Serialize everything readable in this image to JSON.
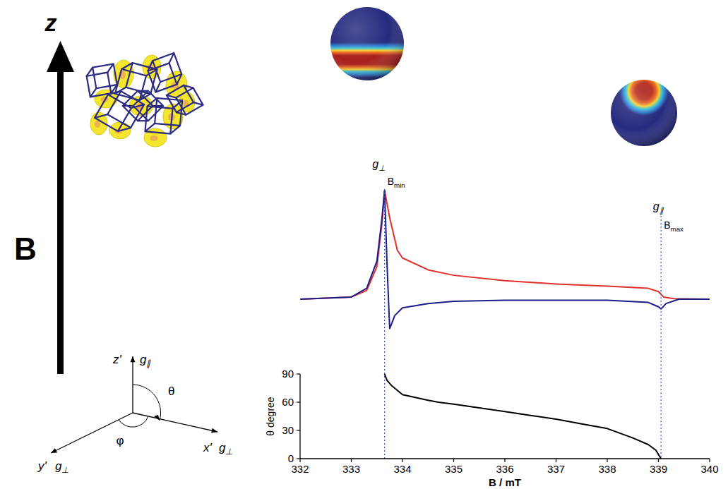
{
  "chart_data": [
    {
      "type": "line",
      "xlim": [
        332,
        340
      ],
      "ylim": [
        -0.4,
        1.1
      ],
      "tick_labels": false,
      "series": [
        {
          "color": "#e0302a",
          "x": [
            332,
            333,
            333.3,
            333.5,
            333.6,
            333.65,
            333.75,
            333.9,
            334,
            334.5,
            335,
            336,
            337,
            338,
            338.8,
            339,
            339.1,
            339.3,
            340
          ],
          "values": [
            0,
            0.02,
            0.08,
            0.3,
            0.7,
            1.0,
            0.75,
            0.45,
            0.38,
            0.27,
            0.22,
            0.17,
            0.14,
            0.12,
            0.1,
            0.07,
            0.02,
            0.005,
            0
          ]
        },
        {
          "color": "#1c1c8c",
          "x": [
            332,
            333,
            333.3,
            333.5,
            333.6,
            333.65,
            333.7,
            333.75,
            333.85,
            334,
            334.5,
            335,
            336,
            337,
            338,
            338.8,
            339,
            339.05,
            339.15,
            339.4,
            340
          ],
          "values": [
            0,
            0.02,
            0.1,
            0.35,
            0.75,
            1.0,
            0.3,
            -0.27,
            -0.15,
            -0.08,
            -0.04,
            -0.02,
            -0.01,
            -0.01,
            -0.01,
            -0.03,
            -0.07,
            -0.09,
            -0.04,
            0,
            0
          ]
        }
      ],
      "annotations": [
        {
          "x": 333.65,
          "g": "g⊥",
          "b": "Bmin"
        },
        {
          "x": 339.05,
          "g": "g∥",
          "b": "Bmax"
        }
      ]
    },
    {
      "type": "line",
      "xlim": [
        332,
        340
      ],
      "ylim": [
        0,
        90
      ],
      "xticks": [
        332,
        333,
        334,
        335,
        336,
        337,
        338,
        339,
        340
      ],
      "yticks": [
        0,
        30,
        60,
        90
      ],
      "x_label": "B / mT",
      "y_label": "θ degree",
      "x": [
        333.65,
        333.7,
        333.8,
        334,
        334.5,
        334.7,
        335,
        335.5,
        336,
        336.5,
        337,
        337.5,
        338,
        338.5,
        338.8,
        338.95,
        339.05
      ],
      "series": [
        {
          "color": "#000000",
          "values": [
            90,
            83,
            77,
            68,
            62,
            60,
            58,
            54,
            50,
            46,
            42,
            37,
            32,
            22,
            15,
            9,
            0
          ]
        }
      ]
    }
  ],
  "diagram": {
    "lab_axis": "z",
    "field": "B",
    "molecule_axes": {
      "z": "z'",
      "z_g": "g∥",
      "x": "x'",
      "x_g": "g⊥",
      "y": "y'",
      "y_g": "g⊥",
      "polar": "θ",
      "azimuth": "φ"
    }
  }
}
